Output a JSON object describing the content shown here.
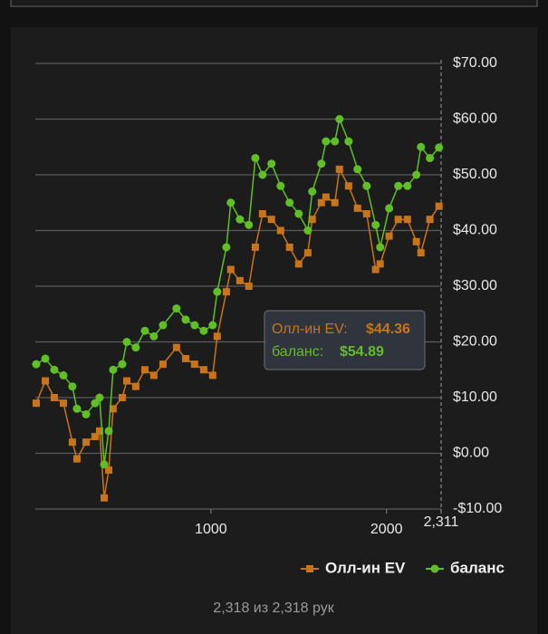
{
  "chart_data": {
    "type": "line",
    "x": [
      5,
      57,
      108,
      160,
      211,
      237,
      289,
      340,
      366,
      392,
      418,
      443,
      495,
      521,
      572,
      624,
      675,
      727,
      804,
      856,
      907,
      959,
      1010,
      1036,
      1088,
      1113,
      1165,
      1216,
      1253,
      1294,
      1345,
      1397,
      1448,
      1500,
      1552,
      1577,
      1629,
      1655,
      1706,
      1732,
      1784,
      1835,
      1887,
      1938,
      1964,
      2015,
      2067,
      2119,
      2170,
      2196,
      2247,
      2299
    ],
    "series": [
      {
        "name": "Олл-ин EV",
        "color": "#c8741a",
        "marker": "square",
        "values": [
          9,
          13,
          10,
          9,
          2,
          -1,
          2,
          3,
          4,
          -8,
          -3,
          8,
          10,
          13,
          12,
          15,
          14,
          16,
          19,
          17,
          16,
          15,
          14,
          21,
          29,
          33,
          31,
          30,
          37,
          43,
          42,
          40,
          37,
          34,
          36,
          42,
          45,
          46,
          45,
          51,
          48,
          44,
          43,
          33,
          34,
          39,
          42,
          42,
          38,
          36,
          42,
          44.36
        ]
      },
      {
        "name": "баланс",
        "color": "#5fbf24",
        "marker": "circle",
        "values": [
          16,
          17,
          15,
          14,
          12,
          8,
          7,
          9,
          10,
          -2,
          4,
          15,
          16,
          20,
          19,
          22,
          21,
          23,
          26,
          24,
          23,
          22,
          23,
          29,
          37,
          45,
          42,
          41,
          53,
          50,
          52,
          48,
          45,
          43,
          40,
          47,
          52,
          56,
          56,
          60,
          56,
          51,
          48,
          41,
          37,
          44,
          48,
          48,
          50,
          55,
          53,
          54.89
        ]
      }
    ],
    "xlim": [
      0,
      2311
    ],
    "xticks": [
      1000,
      2000,
      {
        "value": 2311,
        "label": "2,311"
      }
    ],
    "ylim": [
      -10,
      70
    ],
    "yticks": [
      {
        "value": -10,
        "label": "-$10.00"
      },
      {
        "value": 0,
        "label": "$0.00"
      },
      {
        "value": 10,
        "label": "$10.00"
      },
      {
        "value": 20,
        "label": "$20.00"
      },
      {
        "value": 30,
        "label": "$30.00"
      },
      {
        "value": 40,
        "label": "$40.00"
      },
      {
        "value": 50,
        "label": "$50.00"
      },
      {
        "value": 60,
        "label": "$60.00"
      },
      {
        "value": 70,
        "label": "$70.00"
      }
    ],
    "grid": true,
    "tooltip": [
      {
        "label": "Олл-ин EV:",
        "value": "$44.36"
      },
      {
        "label": "баланс:",
        "value": "$54.89"
      }
    ],
    "footer": "2,318 из 2,318 рук"
  }
}
